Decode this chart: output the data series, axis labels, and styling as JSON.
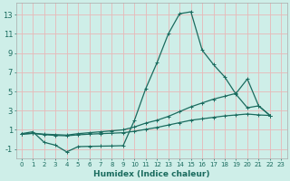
{
  "title": "",
  "xlabel": "Humidex (Indice chaleur)",
  "bg_color": "#ceeee8",
  "grid_color": "#e8b8b8",
  "line_color": "#1a6b5e",
  "spine_color": "#aaaaaa",
  "xlim": [
    -0.5,
    23.5
  ],
  "ylim": [
    -2.0,
    14.2
  ],
  "yticks": [
    -1,
    1,
    3,
    5,
    7,
    9,
    11,
    13
  ],
  "xticks": [
    0,
    1,
    2,
    3,
    4,
    5,
    6,
    7,
    8,
    9,
    10,
    11,
    12,
    13,
    14,
    15,
    16,
    17,
    18,
    19,
    20,
    21,
    22,
    23
  ],
  "series0_x": [
    0,
    1,
    2,
    3,
    4,
    5,
    6,
    7,
    8,
    9,
    10,
    11,
    12,
    13,
    14,
    15,
    16,
    17,
    18,
    19,
    20,
    21,
    22
  ],
  "series0_y": [
    0.6,
    0.8,
    -0.3,
    -0.6,
    -1.3,
    -0.75,
    -0.72,
    -0.7,
    -0.68,
    -0.65,
    2.0,
    5.3,
    8.0,
    11.0,
    13.1,
    13.3,
    9.3,
    7.8,
    6.5,
    4.7,
    3.3,
    3.5,
    2.5
  ],
  "series1_x": [
    0,
    1,
    2,
    3,
    4,
    5,
    6,
    7,
    8,
    9,
    10,
    11,
    12,
    13,
    14,
    15,
    16,
    17,
    18,
    19,
    20,
    21,
    22
  ],
  "series1_y": [
    0.55,
    0.65,
    0.55,
    0.5,
    0.45,
    0.6,
    0.7,
    0.8,
    0.9,
    1.0,
    1.3,
    1.7,
    2.0,
    2.4,
    2.9,
    3.4,
    3.8,
    4.2,
    4.5,
    4.8,
    6.3,
    3.5,
    2.5
  ],
  "series2_x": [
    0,
    1,
    2,
    3,
    4,
    5,
    6,
    7,
    8,
    9,
    10,
    11,
    12,
    13,
    14,
    15,
    16,
    17,
    18,
    19,
    20,
    21,
    22
  ],
  "series2_y": [
    0.55,
    0.62,
    0.5,
    0.42,
    0.38,
    0.48,
    0.55,
    0.6,
    0.65,
    0.7,
    0.85,
    1.05,
    1.25,
    1.5,
    1.75,
    2.0,
    2.15,
    2.3,
    2.45,
    2.55,
    2.65,
    2.55,
    2.5
  ],
  "xlabel_fontsize": 6.5,
  "tick_fontsize_x": 5,
  "tick_fontsize_y": 6
}
